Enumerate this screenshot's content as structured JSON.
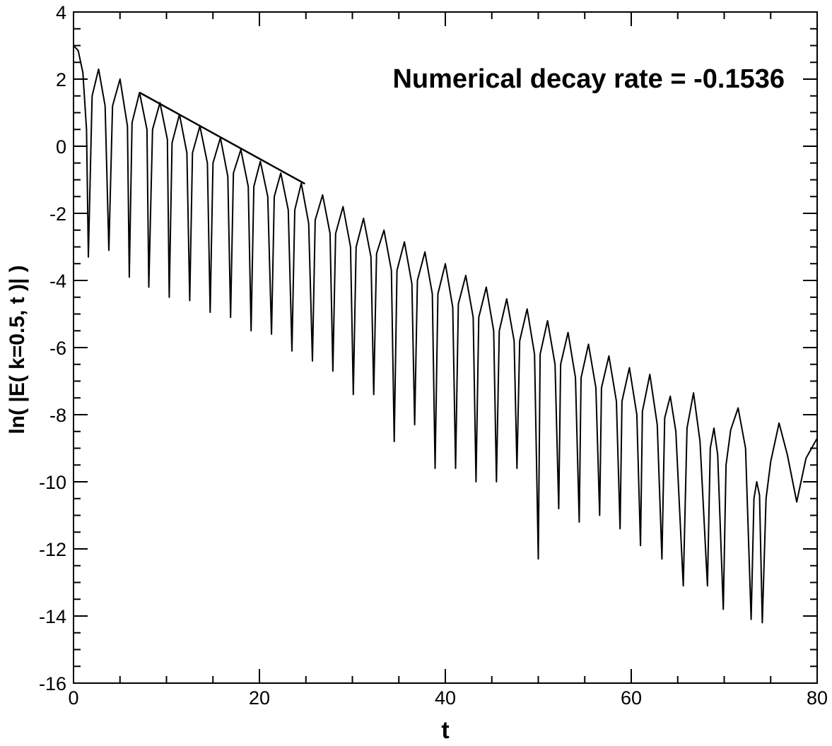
{
  "chart_data": {
    "type": "line",
    "title": "",
    "xlabel": "t",
    "ylabel": "ln( |E( k=0.5, t )| )",
    "xlim": [
      0,
      80
    ],
    "ylim": [
      -16,
      4
    ],
    "xticks": [
      0,
      20,
      40,
      60,
      80
    ],
    "yticks": [
      4,
      2,
      0,
      -2,
      -4,
      -6,
      -8,
      -10,
      -12,
      -14,
      -16
    ],
    "grid": false,
    "annotation": "Numerical decay rate = -0.1536",
    "series": [
      {
        "x": [
          0,
          0.5,
          1.0,
          1.4,
          1.6,
          2.0,
          2.7,
          3.4,
          3.8,
          4.2,
          5.0,
          5.8,
          6.0,
          6.3,
          7.1,
          7.9,
          8.1,
          8.5,
          9.3,
          10.1,
          10.3,
          10.6,
          11.4,
          12.2,
          12.5,
          12.8,
          13.6,
          14.4,
          14.7,
          15.0,
          15.8,
          16.6,
          16.9,
          17.2,
          18.0,
          18.8,
          19.1,
          19.4,
          20.1,
          20.9,
          21.3,
          21.6,
          22.3,
          23.1,
          23.5,
          23.8,
          24.5,
          25.3,
          25.7,
          26.0,
          26.8,
          27.6,
          27.9,
          28.2,
          29.0,
          29.8,
          30.1,
          30.4,
          31.2,
          32.0,
          32.3,
          32.6,
          33.4,
          34.2,
          34.5,
          34.8,
          35.6,
          36.4,
          36.7,
          37.0,
          37.8,
          38.6,
          38.9,
          39.2,
          40.0,
          40.8,
          41.1,
          41.4,
          42.2,
          43.0,
          43.3,
          43.6,
          44.4,
          45.2,
          45.5,
          45.8,
          46.6,
          47.4,
          47.7,
          48.0,
          48.8,
          49.6,
          50.0,
          50.2,
          51.0,
          51.8,
          52.2,
          52.4,
          53.2,
          54.0,
          54.4,
          54.6,
          55.4,
          56.2,
          56.6,
          56.8,
          57.6,
          58.4,
          58.8,
          59.0,
          59.8,
          60.6,
          61.0,
          61.2,
          62.0,
          62.8,
          63.3,
          63.6,
          64.2,
          64.8,
          65.6,
          66.0,
          66.7,
          67.4,
          68.2,
          68.5,
          68.9,
          69.3,
          69.9,
          70.2,
          70.7,
          71.5,
          72.3,
          72.9,
          73.2,
          73.5,
          73.8,
          74.1,
          74.5,
          75.0,
          75.9,
          76.8,
          77.8,
          78.8,
          80.0
        ],
        "y": [
          3.0,
          2.85,
          2.2,
          0.5,
          -3.3,
          1.5,
          2.3,
          1.2,
          -3.1,
          1.2,
          2.0,
          0.6,
          -3.9,
          0.7,
          1.6,
          0.5,
          -4.2,
          0.5,
          1.3,
          0.2,
          -4.5,
          0.1,
          0.95,
          -0.2,
          -4.6,
          -0.2,
          0.6,
          -0.5,
          -4.95,
          -0.5,
          0.25,
          -0.9,
          -5.1,
          -0.8,
          -0.1,
          -1.2,
          -5.5,
          -1.2,
          -0.45,
          -1.5,
          -5.6,
          -1.5,
          -0.8,
          -1.9,
          -6.1,
          -1.9,
          -1.1,
          -2.3,
          -6.4,
          -2.2,
          -1.45,
          -2.6,
          -6.7,
          -2.6,
          -1.8,
          -3.0,
          -7.4,
          -3.0,
          -2.15,
          -3.3,
          -7.4,
          -3.2,
          -2.5,
          -3.7,
          -8.8,
          -3.7,
          -2.85,
          -4.1,
          -8.3,
          -4.0,
          -3.15,
          -4.4,
          -9.6,
          -4.4,
          -3.5,
          -4.8,
          -9.6,
          -4.7,
          -3.85,
          -5.1,
          -10.0,
          -5.1,
          -4.2,
          -5.5,
          -10.0,
          -5.5,
          -4.55,
          -5.8,
          -9.6,
          -5.8,
          -4.85,
          -6.2,
          -12.3,
          -6.2,
          -5.2,
          -6.5,
          -10.8,
          -6.5,
          -5.55,
          -6.9,
          -11.2,
          -6.9,
          -5.9,
          -7.2,
          -11.0,
          -7.2,
          -6.25,
          -7.6,
          -11.4,
          -7.6,
          -6.6,
          -8.0,
          -11.9,
          -7.9,
          -6.8,
          -8.3,
          -12.3,
          -8.1,
          -7.45,
          -8.5,
          -13.1,
          -8.4,
          -7.35,
          -8.8,
          -13.1,
          -9.0,
          -8.4,
          -9.2,
          -13.8,
          -9.5,
          -8.45,
          -7.8,
          -9.0,
          -14.1,
          -10.5,
          -10.0,
          -10.4,
          -14.2,
          -10.5,
          -9.4,
          -8.25,
          -9.2,
          -10.6,
          -9.3,
          -8.7
        ]
      },
      {
        "x": [
          7.1,
          24.9
        ],
        "y": [
          1.6,
          -1.12
        ]
      }
    ]
  }
}
